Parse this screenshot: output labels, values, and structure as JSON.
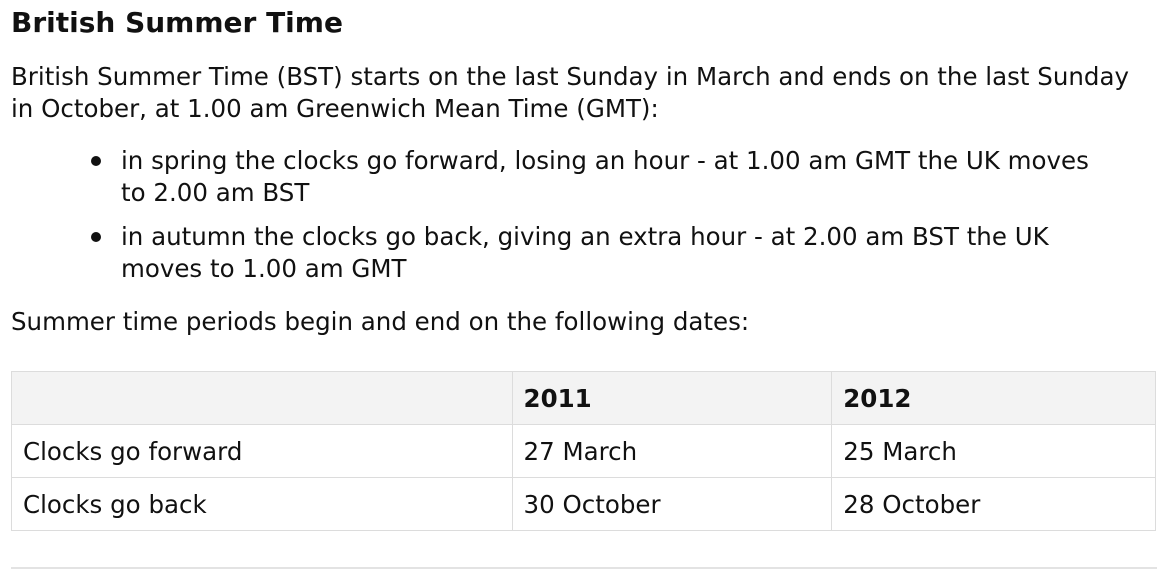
{
  "heading": "British Summer Time",
  "intro": "British Summer Time (BST) starts on the last Sunday in March and ends on the last Sunday in October, at 1.00 am Greenwich Mean Time (GMT):",
  "rules": [
    "in spring the clocks go forward, losing an hour - at 1.00 am GMT the UK moves to 2.00 am BST",
    "in autumn the clocks go back, giving an extra hour - at 2.00 am BST the UK moves to 1.00 am GMT"
  ],
  "lead": "Summer time periods begin and end on the following dates:",
  "table": {
    "headers": [
      "",
      "2011",
      "2012"
    ],
    "rows": [
      [
        "Clocks go forward",
        "27 March",
        "25 March"
      ],
      [
        "Clocks go back",
        "30 October",
        "28 October"
      ]
    ]
  }
}
